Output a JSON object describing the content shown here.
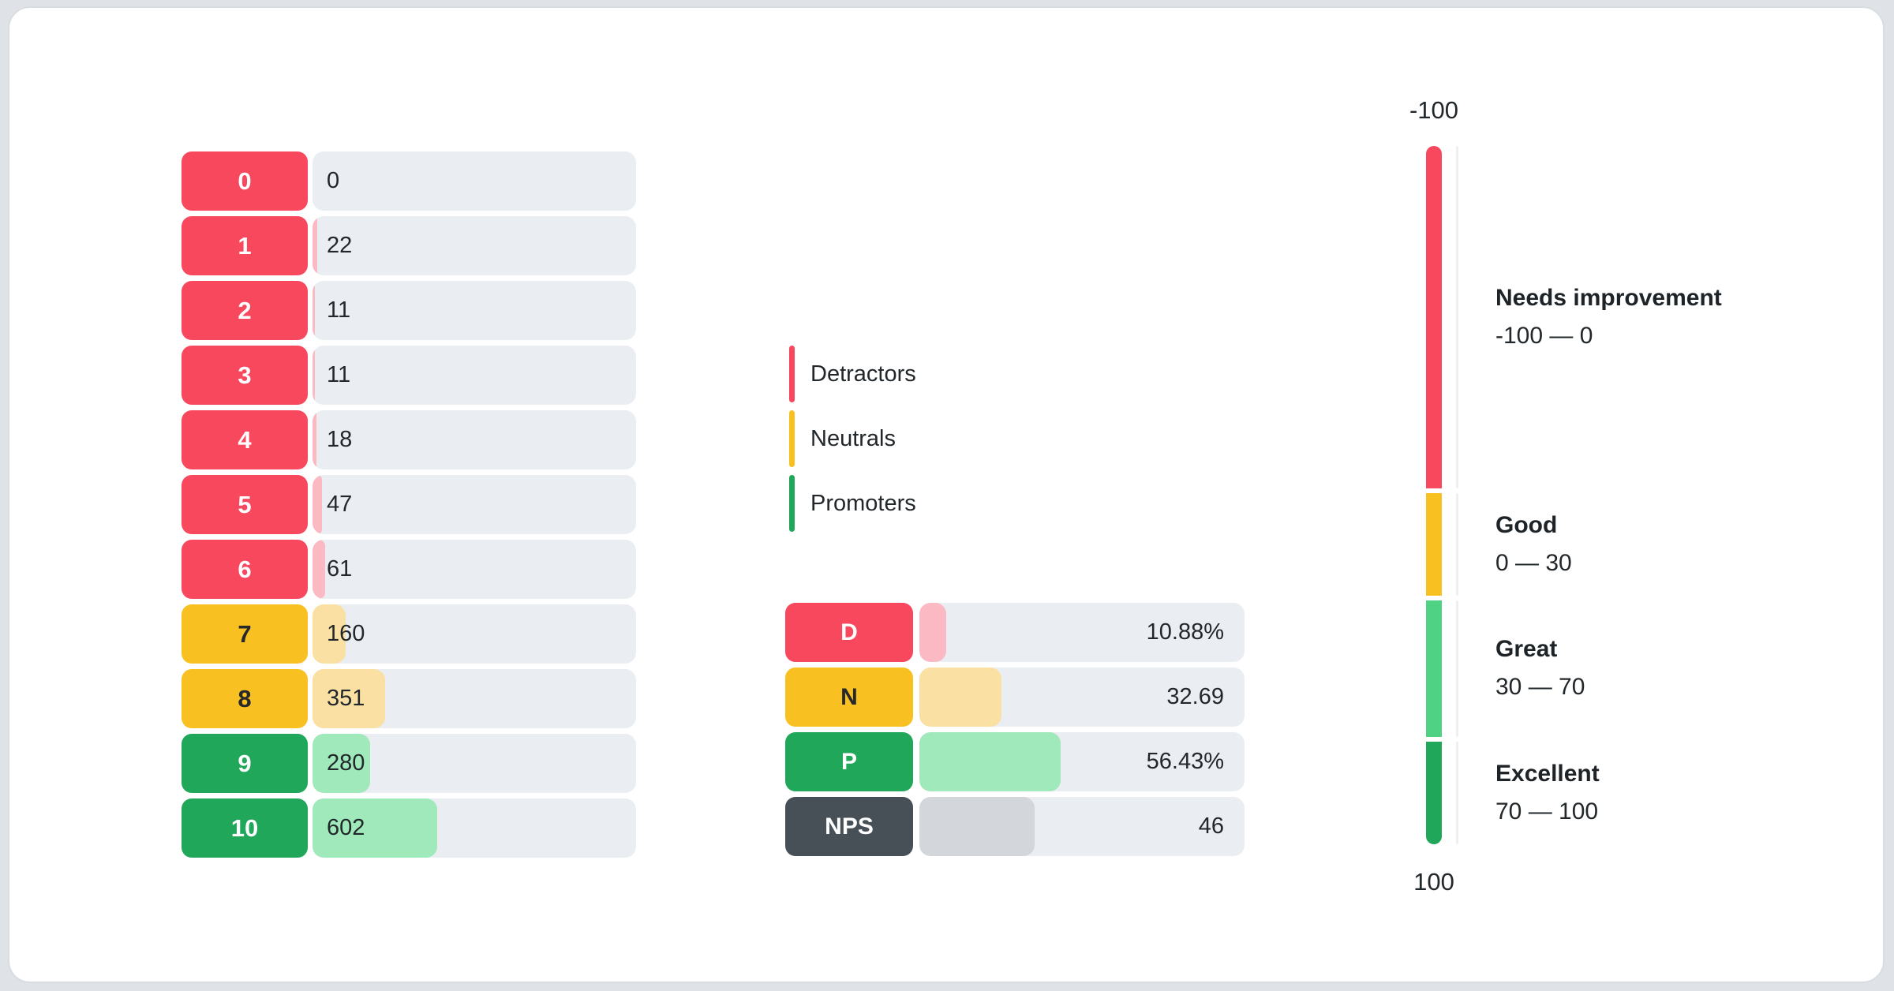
{
  "palette": {
    "detractor": {
      "main": "#F8485E",
      "fill": "#FBBAC3",
      "text": "#FFFFFF"
    },
    "neutral": {
      "main": "#F8C021",
      "fill": "#FBE0A4",
      "text": "#26282B"
    },
    "promoter": {
      "main": "#21A75A",
      "fill": "#9FE9BA",
      "text": "#FFFFFF"
    },
    "nps": {
      "main": "#474F57",
      "fill": "#D3D6DA",
      "text": "#FFFFFF"
    },
    "great_band": "#50D284",
    "track": "#EAEDF1",
    "text": "#21272A"
  },
  "scores": {
    "rows": [
      {
        "label": "0",
        "value": 0,
        "display": "0",
        "group": "detractor"
      },
      {
        "label": "1",
        "value": 22,
        "display": "22",
        "group": "detractor"
      },
      {
        "label": "2",
        "value": 11,
        "display": "11",
        "group": "detractor"
      },
      {
        "label": "3",
        "value": 11,
        "display": "11",
        "group": "detractor"
      },
      {
        "label": "4",
        "value": 18,
        "display": "18",
        "group": "detractor"
      },
      {
        "label": "5",
        "value": 47,
        "display": "47",
        "group": "detractor"
      },
      {
        "label": "6",
        "value": 61,
        "display": "61",
        "group": "detractor"
      },
      {
        "label": "7",
        "value": 160,
        "display": "160",
        "group": "neutral"
      },
      {
        "label": "8",
        "value": 351,
        "display": "351",
        "group": "neutral"
      },
      {
        "label": "9",
        "value": 280,
        "display": "280",
        "group": "promoter"
      },
      {
        "label": "10",
        "value": 602,
        "display": "602",
        "group": "promoter"
      }
    ]
  },
  "legend": {
    "items": [
      {
        "label": "Detractors",
        "group": "detractor"
      },
      {
        "label": "Neutrals",
        "group": "neutral"
      },
      {
        "label": "Promoters",
        "group": "promoter"
      }
    ]
  },
  "summary": {
    "scale_max": 130,
    "rows": [
      {
        "label": "D",
        "value": 10.88,
        "display": "10.88%",
        "group": "detractor"
      },
      {
        "label": "N",
        "value": 32.69,
        "display": "32.69",
        "group": "neutral"
      },
      {
        "label": "P",
        "value": 56.43,
        "display": "56.43%",
        "group": "promoter"
      },
      {
        "label": "NPS",
        "value": 46,
        "display": "46",
        "group": "nps"
      }
    ]
  },
  "gauge": {
    "min": -100,
    "max": 100,
    "top_label": "-100",
    "bottom_label": "100",
    "bands": [
      {
        "name": "Needs improvement",
        "range_display": "-100 — 0",
        "from": -100,
        "to": 0,
        "group": "detractor"
      },
      {
        "name": "Good",
        "range_display": "0 — 30",
        "from": 0,
        "to": 30,
        "group": "neutral"
      },
      {
        "name": "Great",
        "range_display": "30 — 70",
        "from": 30,
        "to": 70,
        "color_key": "great_band"
      },
      {
        "name": "Excellent",
        "range_display": "70 — 100",
        "from": 70,
        "to": 100,
        "group": "promoter"
      }
    ]
  },
  "chart_data": [
    {
      "type": "bar",
      "orientation": "horizontal",
      "categories": [
        "0",
        "1",
        "2",
        "3",
        "4",
        "5",
        "6",
        "7",
        "8",
        "9",
        "10"
      ],
      "values": [
        0,
        22,
        11,
        11,
        18,
        47,
        61,
        160,
        351,
        280,
        602
      ],
      "groups": [
        "detractor",
        "detractor",
        "detractor",
        "detractor",
        "detractor",
        "detractor",
        "detractor",
        "neutral",
        "neutral",
        "promoter",
        "promoter"
      ],
      "total_responses": 1563,
      "note": "bar fill width = value / total responses"
    },
    {
      "type": "bar",
      "orientation": "horizontal",
      "categories": [
        "D",
        "N",
        "P",
        "NPS"
      ],
      "values": [
        10.88,
        32.69,
        56.43,
        46
      ],
      "value_labels": [
        "10.88%",
        "32.69",
        "56.43%",
        "46"
      ],
      "xlim": [
        0,
        130
      ]
    },
    {
      "type": "gauge",
      "min": -100,
      "max": 100,
      "bands": [
        {
          "label": "Needs improvement",
          "from": -100,
          "to": 0
        },
        {
          "label": "Good",
          "from": 0,
          "to": 30
        },
        {
          "label": "Great",
          "from": 30,
          "to": 70
        },
        {
          "label": "Excellent",
          "from": 70,
          "to": 100
        }
      ],
      "legend_position": "right"
    }
  ]
}
